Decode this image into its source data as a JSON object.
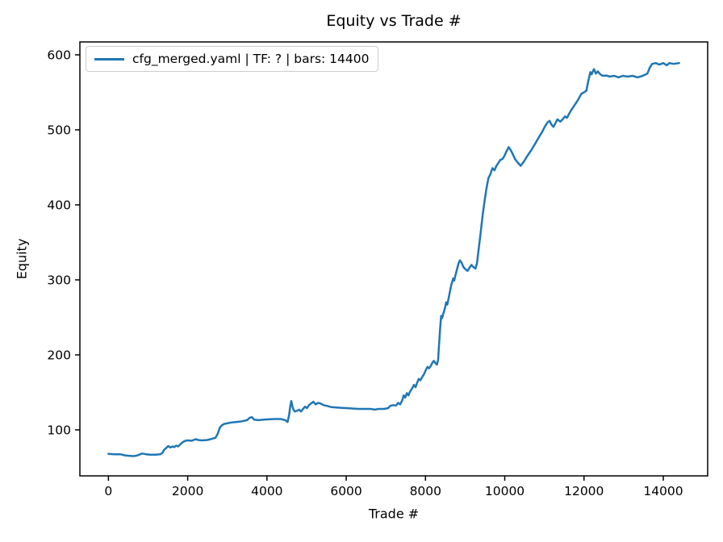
{
  "chart_data": {
    "type": "line",
    "title": "Equity vs Trade #",
    "xlabel": "Trade #",
    "ylabel": "Equity",
    "grid": false,
    "legend_position": "upper left",
    "legend": [
      {
        "label": "cfg_merged.yaml | TF: ? | bars: 14400",
        "color": "#1f77b4"
      }
    ],
    "axes": {
      "xlim": [
        -720,
        15120
      ],
      "ylim": [
        38.7,
        617.2
      ],
      "xticks": [
        0,
        2000,
        4000,
        6000,
        8000,
        10000,
        12000,
        14000
      ],
      "yticks": [
        100,
        200,
        300,
        400,
        500,
        600
      ]
    },
    "colors": {
      "line": "#1f77b4",
      "spine": "#000000",
      "text": "#000000",
      "legend_border": "#cccccc",
      "background": "#ffffff"
    },
    "series": [
      {
        "name": "cfg_merged.yaml | TF: ? | bars: 14400",
        "color": "#1f77b4",
        "points": [
          [
            0,
            68
          ],
          [
            150,
            67.5
          ],
          [
            300,
            67.5
          ],
          [
            420,
            66
          ],
          [
            520,
            65.5
          ],
          [
            620,
            65
          ],
          [
            700,
            65.5
          ],
          [
            780,
            67
          ],
          [
            850,
            68.5
          ],
          [
            950,
            67.5
          ],
          [
            1050,
            67
          ],
          [
            1200,
            67
          ],
          [
            1300,
            67.5
          ],
          [
            1360,
            69
          ],
          [
            1400,
            73
          ],
          [
            1460,
            76
          ],
          [
            1510,
            78.5
          ],
          [
            1560,
            76.5
          ],
          [
            1620,
            78
          ],
          [
            1660,
            77
          ],
          [
            1710,
            79
          ],
          [
            1760,
            78
          ],
          [
            1810,
            80.5
          ],
          [
            1860,
            83
          ],
          [
            1920,
            85
          ],
          [
            2000,
            86
          ],
          [
            2100,
            85.5
          ],
          [
            2200,
            87.5
          ],
          [
            2260,
            86.5
          ],
          [
            2360,
            86
          ],
          [
            2500,
            86.5
          ],
          [
            2600,
            88
          ],
          [
            2700,
            89.5
          ],
          [
            2760,
            95
          ],
          [
            2810,
            103
          ],
          [
            2860,
            106
          ],
          [
            2920,
            108
          ],
          [
            3020,
            109
          ],
          [
            3120,
            110
          ],
          [
            3220,
            110.5
          ],
          [
            3320,
            111
          ],
          [
            3420,
            112
          ],
          [
            3500,
            113
          ],
          [
            3560,
            116
          ],
          [
            3620,
            117
          ],
          [
            3680,
            113.5
          ],
          [
            3800,
            113
          ],
          [
            3900,
            113.5
          ],
          [
            4000,
            114
          ],
          [
            4200,
            114.5
          ],
          [
            4350,
            114.5
          ],
          [
            4460,
            113
          ],
          [
            4520,
            110.5
          ],
          [
            4560,
            120
          ],
          [
            4590,
            132
          ],
          [
            4615,
            138.5
          ],
          [
            4645,
            131
          ],
          [
            4670,
            127
          ],
          [
            4700,
            124.5
          ],
          [
            4760,
            125.5
          ],
          [
            4810,
            127
          ],
          [
            4860,
            124.5
          ],
          [
            4910,
            128
          ],
          [
            4960,
            131
          ],
          [
            5010,
            129
          ],
          [
            5060,
            133
          ],
          [
            5110,
            135
          ],
          [
            5170,
            137.5
          ],
          [
            5230,
            134
          ],
          [
            5290,
            136
          ],
          [
            5360,
            135
          ],
          [
            5430,
            133
          ],
          [
            5510,
            132
          ],
          [
            5610,
            130.5
          ],
          [
            5720,
            130
          ],
          [
            5860,
            129.5
          ],
          [
            6010,
            129
          ],
          [
            6160,
            128.5
          ],
          [
            6310,
            128
          ],
          [
            6470,
            128
          ],
          [
            6620,
            128
          ],
          [
            6720,
            127
          ],
          [
            6820,
            128
          ],
          [
            6960,
            128
          ],
          [
            7060,
            129
          ],
          [
            7110,
            132
          ],
          [
            7190,
            133
          ],
          [
            7260,
            132.5
          ],
          [
            7310,
            136
          ],
          [
            7360,
            134
          ],
          [
            7410,
            139
          ],
          [
            7450,
            146
          ],
          [
            7490,
            143
          ],
          [
            7530,
            149
          ],
          [
            7570,
            146
          ],
          [
            7610,
            151
          ],
          [
            7660,
            155
          ],
          [
            7710,
            160
          ],
          [
            7750,
            157
          ],
          [
            7790,
            163
          ],
          [
            7830,
            168
          ],
          [
            7870,
            166
          ],
          [
            7910,
            170
          ],
          [
            7960,
            174
          ],
          [
            8010,
            180
          ],
          [
            8050,
            184
          ],
          [
            8090,
            182
          ],
          [
            8130,
            185
          ],
          [
            8170,
            189
          ],
          [
            8210,
            192
          ],
          [
            8250,
            189
          ],
          [
            8290,
            187
          ],
          [
            8320,
            194
          ],
          [
            8340,
            212
          ],
          [
            8370,
            236
          ],
          [
            8395,
            252
          ],
          [
            8420,
            249
          ],
          [
            8450,
            255
          ],
          [
            8490,
            262
          ],
          [
            8520,
            270
          ],
          [
            8550,
            267
          ],
          [
            8600,
            280
          ],
          [
            8650,
            293
          ],
          [
            8700,
            302
          ],
          [
            8725,
            299
          ],
          [
            8755,
            306
          ],
          [
            8800,
            315
          ],
          [
            8835,
            322
          ],
          [
            8870,
            326
          ],
          [
            8910,
            323
          ],
          [
            8960,
            317
          ],
          [
            9010,
            314
          ],
          [
            9060,
            312
          ],
          [
            9110,
            316
          ],
          [
            9160,
            320
          ],
          [
            9210,
            317
          ],
          [
            9260,
            315
          ],
          [
            9300,
            322
          ],
          [
            9340,
            340
          ],
          [
            9390,
            362
          ],
          [
            9440,
            385
          ],
          [
            9490,
            405
          ],
          [
            9540,
            422
          ],
          [
            9590,
            436
          ],
          [
            9640,
            441
          ],
          [
            9690,
            449
          ],
          [
            9740,
            446
          ],
          [
            9790,
            452
          ],
          [
            9840,
            456
          ],
          [
            9890,
            460
          ],
          [
            9940,
            461
          ],
          [
            9990,
            465
          ],
          [
            10040,
            471
          ],
          [
            10100,
            477
          ],
          [
            10150,
            473
          ],
          [
            10200,
            468
          ],
          [
            10260,
            461
          ],
          [
            10320,
            457
          ],
          [
            10400,
            452
          ],
          [
            10460,
            456
          ],
          [
            10520,
            461
          ],
          [
            10580,
            466
          ],
          [
            10660,
            472
          ],
          [
            10760,
            481
          ],
          [
            10860,
            490
          ],
          [
            10940,
            497
          ],
          [
            11020,
            505
          ],
          [
            11080,
            510
          ],
          [
            11130,
            512
          ],
          [
            11180,
            507
          ],
          [
            11230,
            504
          ],
          [
            11280,
            509
          ],
          [
            11330,
            514
          ],
          [
            11400,
            511
          ],
          [
            11460,
            514
          ],
          [
            11520,
            518
          ],
          [
            11570,
            516
          ],
          [
            11650,
            524
          ],
          [
            11750,
            532
          ],
          [
            11850,
            540
          ],
          [
            11930,
            548
          ],
          [
            12000,
            550
          ],
          [
            12060,
            552
          ],
          [
            12110,
            566
          ],
          [
            12160,
            577
          ],
          [
            12190,
            574
          ],
          [
            12250,
            581
          ],
          [
            12300,
            575
          ],
          [
            12350,
            578
          ],
          [
            12410,
            574
          ],
          [
            12470,
            572
          ],
          [
            12560,
            572.5
          ],
          [
            12650,
            571
          ],
          [
            12760,
            572
          ],
          [
            12870,
            570
          ],
          [
            12980,
            572
          ],
          [
            13100,
            571
          ],
          [
            13220,
            572
          ],
          [
            13350,
            570
          ],
          [
            13480,
            572
          ],
          [
            13600,
            575
          ],
          [
            13660,
            583
          ],
          [
            13720,
            588
          ],
          [
            13810,
            589
          ],
          [
            13900,
            587
          ],
          [
            14000,
            589
          ],
          [
            14090,
            586
          ],
          [
            14150,
            589
          ],
          [
            14260,
            588
          ],
          [
            14400,
            589
          ]
        ]
      }
    ]
  }
}
